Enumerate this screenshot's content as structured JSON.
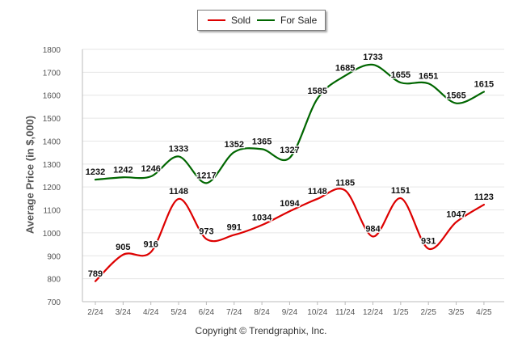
{
  "chart_data": {
    "type": "line",
    "categories": [
      "2/24",
      "3/24",
      "4/24",
      "5/24",
      "6/24",
      "7/24",
      "8/24",
      "9/24",
      "10/24",
      "11/24",
      "12/24",
      "1/25",
      "2/25",
      "3/25",
      "4/25"
    ],
    "series": [
      {
        "name": "Sold",
        "color": "#dd0000",
        "values": [
          789,
          905,
          916,
          1148,
          973,
          991,
          1034,
          1094,
          1148,
          1185,
          984,
          1151,
          931,
          1047,
          1123
        ]
      },
      {
        "name": "For Sale",
        "color": "#006600",
        "values": [
          1232,
          1242,
          1246,
          1333,
          1217,
          1352,
          1365,
          1327,
          1585,
          1685,
          1733,
          1655,
          1651,
          1565,
          1615
        ]
      }
    ],
    "ylabel": "Average Price (in $,000)",
    "ylim": [
      700,
      1800
    ],
    "yticks": [
      "1800",
      "1700",
      "1600",
      "1500",
      "1400",
      "1300",
      "1200",
      "1100",
      "1000",
      "900",
      "800",
      "700"
    ],
    "grid": true,
    "legend_position": "top-center"
  },
  "footer": {
    "copyright": "Copyright © Trendgraphix, Inc."
  }
}
